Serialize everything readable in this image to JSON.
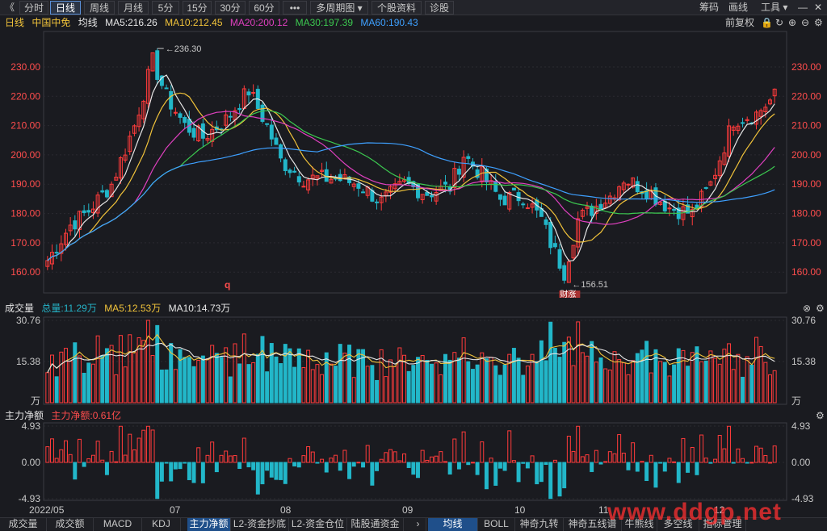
{
  "toolbar": {
    "back": "《",
    "tabs": [
      "分时",
      "日线",
      "周线",
      "月线",
      "5分",
      "15分",
      "30分",
      "60分",
      "•••"
    ],
    "active": "日线",
    "multi_period": "多周期图 ▾",
    "stock_info": "个股资料",
    "diagnose": "诊股",
    "right": [
      "筹码",
      "画线",
      "工具 ▾"
    ],
    "window_controls": [
      "—",
      "✕"
    ]
  },
  "main": {
    "period_label": "日线",
    "stock_name": "中国中免",
    "ma_label": "均线",
    "ma5": "MA5:216.26",
    "ma10": "MA10:212.45",
    "ma20": "MA20:200.12",
    "ma30": "MA30:197.39",
    "ma60": "MA60:190.43",
    "adjust": "前复权",
    "price_ticks": [
      "230.00",
      "220.00",
      "210.00",
      "200.00",
      "190.00",
      "180.00",
      "170.00",
      "160.00"
    ],
    "high_label": "236.30",
    "low_label": "156.51",
    "ex_marker": "q",
    "rise_marker": "财涨"
  },
  "volume": {
    "title": "成交量",
    "total": "总量:11.29万",
    "ma5": "MA5:12.53万",
    "ma10": "MA10:14.73万",
    "ticks": [
      "30.76",
      "15.38",
      "万"
    ]
  },
  "flow": {
    "title": "主力净额",
    "value": "主力净额:0.61亿",
    "ticks": [
      "4.93",
      "0.00",
      "-4.93"
    ]
  },
  "xaxis": {
    "labels": [
      "2022/05",
      "07",
      "08",
      "09",
      "10",
      "11",
      "12"
    ]
  },
  "bottom_tabs": [
    "成交量",
    "成交额",
    "MACD",
    "KDJ",
    "主力净额",
    "L2-资金抄底",
    "L2-资金仓位",
    "陆股通资金",
    "均线",
    "BOLL",
    "神奇九转",
    "神奇五线谱",
    "牛熊线",
    "多空线",
    "指标管理"
  ],
  "bottom_active": [
    "主力净额",
    "均线"
  ],
  "watermark": "www.ddgp.net",
  "colors": {
    "up": "#ff3b3b",
    "down": "#22b7c9",
    "ma5": "#e6e6e6",
    "ma10": "#f0c23a",
    "ma20": "#e040c0",
    "ma30": "#3cc850",
    "ma60": "#3ea0ff",
    "bg": "#1a1b20"
  },
  "chart_data": {
    "type": "candlestick",
    "title": "中国中免 日线",
    "ylim": [
      154,
      241
    ],
    "days": 160,
    "key_points": [
      {
        "label": "high",
        "value": 236.3
      },
      {
        "label": "low",
        "value": 156.51
      }
    ],
    "ma_last": {
      "MA5": 216.26,
      "MA10": 212.45,
      "MA20": 200.12,
      "MA30": 197.39,
      "MA60": 190.43
    },
    "volume_ylim": [
      0,
      30.76
    ],
    "volume_unit": "万",
    "flow_ylim": [
      -4.93,
      4.93
    ],
    "flow_unit": "亿"
  }
}
